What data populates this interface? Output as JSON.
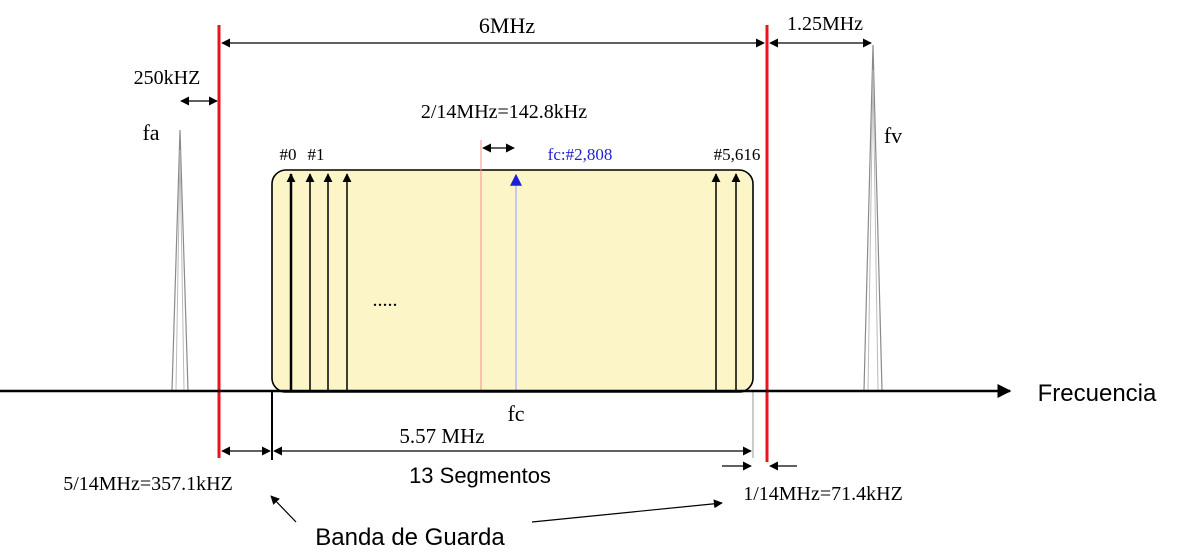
{
  "labels": {
    "total_bandwidth": "6MHz",
    "audio_offset": "1.25MHz",
    "fa_guard": "250kHZ",
    "fa": "fa",
    "fv": "fv",
    "carrier_spacing_2": "2/14MHz=142.8kHz",
    "carrier_first": "#0",
    "carrier_second": "#1",
    "center_carrier": "fc:#2,808",
    "last_carrier": "#5,616",
    "dots": ".....",
    "axis_label": "Frecuencia",
    "fc": "fc",
    "signal_bandwidth": "5.57 MHz",
    "segments": "13 Segmentos",
    "lower_guard": "5/14MHz=357.1kHZ",
    "upper_guard": "1/14MHz=71.4kHZ",
    "guard_band": "Banda de Guarda"
  },
  "colors": {
    "channel_edge": "#e8141e",
    "band_fill": "#fbf5c8",
    "center_carrier": "#1f1fd6",
    "marker_line": "#ff8c8c",
    "ink": "#000000",
    "peak": "#8a8a8a"
  }
}
